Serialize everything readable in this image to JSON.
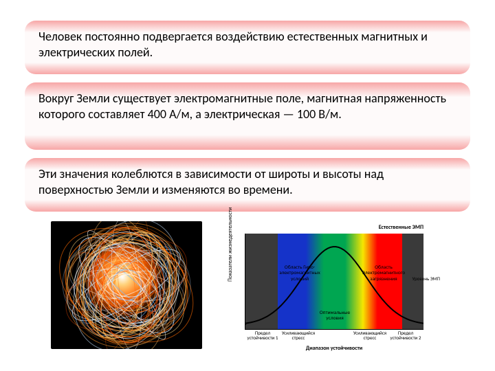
{
  "cards": {
    "gradient": {
      "top": "#f7a6a6",
      "mid": "#fefafa",
      "bot": "#f7a6a6"
    },
    "c1": "Человек постоянно подвергается воздействию естественных магнитных и электрических полей.",
    "c2": "Вокруг Земли существует электромагнитные поле, магнитная напряженность которого составляет 400 А/м, а электрическая — 100 В/м.",
    "c3": "Эти значения колеблются в зависимости от широты и высоты над поверхностью Земли и изменяются во времени."
  },
  "sphere": {
    "bg": "#000000",
    "line_colors": [
      "#ff6a00",
      "#ff9a2e",
      "#ffd27a",
      "#7ab8ff",
      "#c8e4ff",
      "#ffffff",
      "#ff4e00",
      "#ffc066"
    ],
    "loops": 80
  },
  "spectrum": {
    "bands": [
      {
        "from": 0,
        "to": 18,
        "color": "#3a3a3a"
      },
      {
        "from": 18,
        "to": 34,
        "color": "#1533c9"
      },
      {
        "from": 34,
        "to": 44,
        "gradient": [
          "#1533c9",
          "#00a651"
        ]
      },
      {
        "from": 44,
        "to": 56,
        "color": "#00a651"
      },
      {
        "from": 56,
        "to": 66,
        "gradient": [
          "#00a651",
          "#f6e600"
        ]
      },
      {
        "from": 66,
        "to": 74,
        "gradient": [
          "#f6e600",
          "#ff0000"
        ]
      },
      {
        "from": 74,
        "to": 88,
        "color": "#ff0000"
      },
      {
        "from": 88,
        "to": 100,
        "color": "#3a3a3a"
      }
    ],
    "curve_color": "#000000",
    "labels": {
      "y": "Показатели жизнедеятельности",
      "topRight": "Естественные ЭМП",
      "hypo": "Область Гипо-электромагнитных условий",
      "hyper": "Область Электромагнитного загрязнения",
      "optimal": "Оптимальные условия",
      "xTicks": [
        "Предел устойчивости 1",
        "Усиливающийся стресс",
        "",
        "Усиливающийся стресс",
        "Предел устойчивости 2"
      ],
      "xTitle": "Диапазон устойчивости",
      "rightLimit": "Уровень ЭМП",
      "leftLimit": ""
    }
  }
}
